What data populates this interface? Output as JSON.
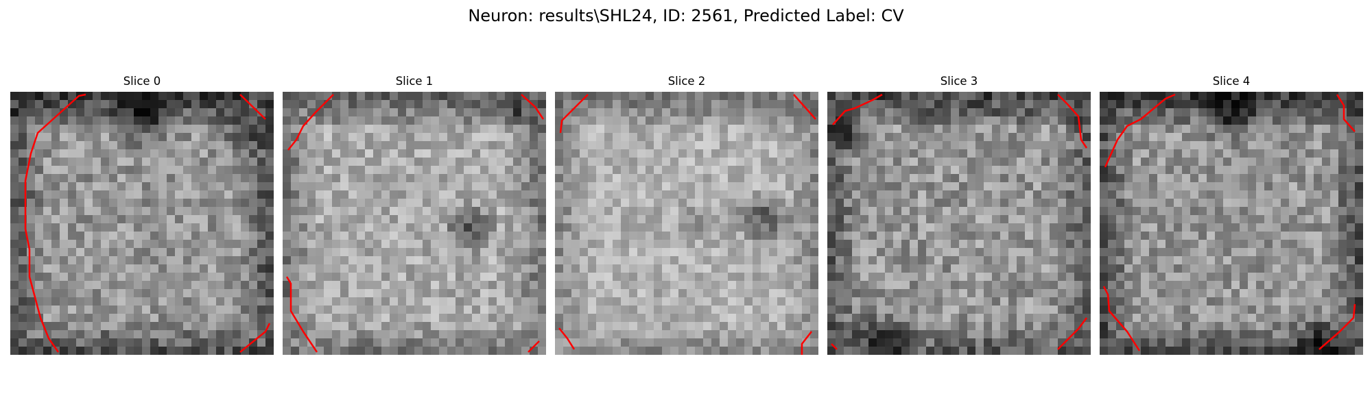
{
  "figure": {
    "title": "Neuron: results\\SHL24, ID: 2561, Predicted Label: CV"
  },
  "slices": [
    {
      "label": "Slice 0"
    },
    {
      "label": "Slice 1"
    },
    {
      "label": "Slice 2"
    },
    {
      "label": "Slice 3"
    },
    {
      "label": "Slice 4"
    }
  ],
  "colors": {
    "contour": "#ff0000",
    "colormap": "gray"
  }
}
